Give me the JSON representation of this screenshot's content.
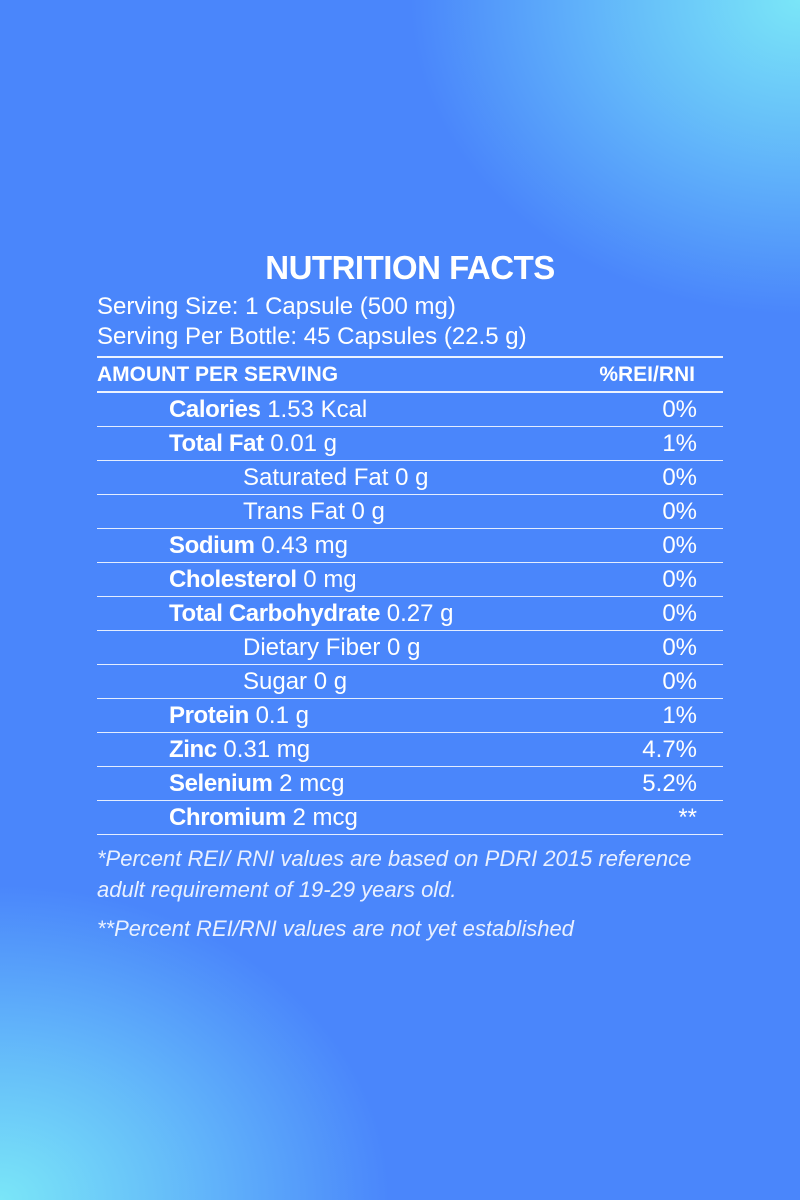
{
  "title": "NUTRITION FACTS",
  "serving_size": "Serving Size: 1 Capsule (500 mg)",
  "serving_per_bottle": "Serving Per Bottle: 45 Capsules (22.5 g)",
  "header": {
    "left": "AMOUNT PER SERVING",
    "right": "%REI/RNI"
  },
  "rows": [
    {
      "name": "Calories",
      "amount": "1.53 Kcal",
      "pct": "0%",
      "level": 1,
      "bold": true
    },
    {
      "name": "Total Fat",
      "amount": "0.01 g",
      "pct": "1%",
      "level": 1,
      "bold": true
    },
    {
      "name": "Saturated Fat",
      "amount": "0 g",
      "pct": "0%",
      "level": 2,
      "bold": false
    },
    {
      "name": "Trans Fat",
      "amount": "0 g",
      "pct": "0%",
      "level": 2,
      "bold": false
    },
    {
      "name": "Sodium",
      "amount": "0.43 mg",
      "pct": "0%",
      "level": 1,
      "bold": true
    },
    {
      "name": "Cholesterol",
      "amount": "0 mg",
      "pct": "0%",
      "level": 1,
      "bold": true
    },
    {
      "name": "Total Carbohydrate",
      "amount": "0.27 g",
      "pct": "0%",
      "level": 1,
      "bold": true
    },
    {
      "name": "Dietary Fiber",
      "amount": "0 g",
      "pct": "0%",
      "level": 2,
      "bold": false
    },
    {
      "name": "Sugar",
      "amount": "0 g",
      "pct": "0%",
      "level": 2,
      "bold": false
    },
    {
      "name": "Protein",
      "amount": "0.1 g",
      "pct": "1%",
      "level": 1,
      "bold": true
    },
    {
      "name": "Zinc",
      "amount": "0.31 mg",
      "pct": "4.7%",
      "level": 1,
      "bold": true
    },
    {
      "name": "Selenium",
      "amount": "2 mcg",
      "pct": "5.2%",
      "level": 1,
      "bold": true
    },
    {
      "name": "Chromium",
      "amount": "2 mcg",
      "pct": "**",
      "level": 1,
      "bold": true
    }
  ],
  "footnotes": [
    "*Percent REI/ RNI values are based on PDRI 2015 reference adult requirement of 19-29 years old.",
    "**Percent REI/RNI values are not yet established"
  ],
  "colors": {
    "background_blue": "#4a86fb",
    "background_cyan": "#7ae6f8",
    "text": "#ffffff"
  }
}
